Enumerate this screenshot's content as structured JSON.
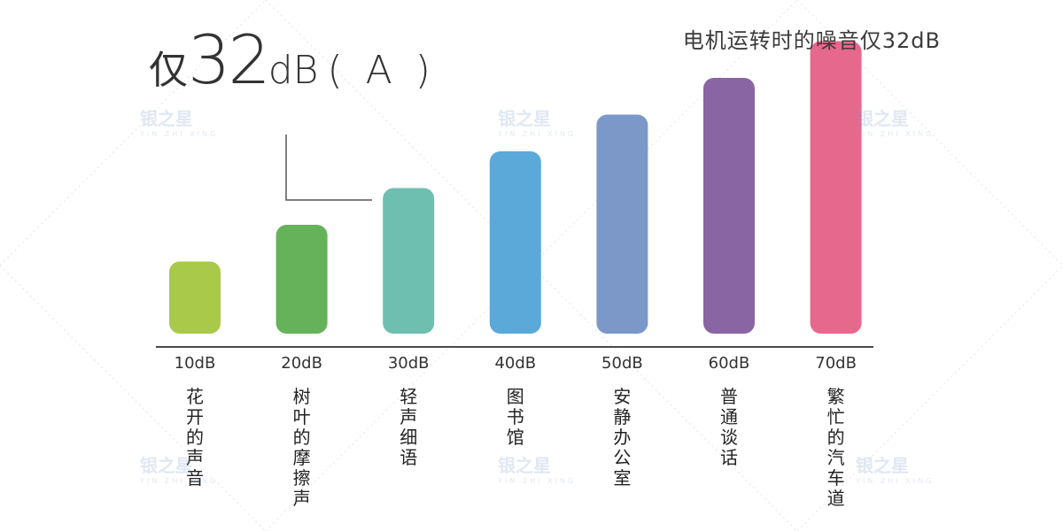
{
  "chart_data": {
    "type": "bar",
    "title": "电机运转时的噪音仅32dB",
    "callout": {
      "prefix": "仅",
      "number": "32",
      "unit": "dB",
      "suffix": "( A )"
    },
    "callout_value_db": 32,
    "categories": [
      "10dB",
      "20dB",
      "30dB",
      "40dB",
      "50dB",
      "60dB",
      "70dB"
    ],
    "descriptions": [
      "花开的声音",
      "树叶的摩擦声",
      "轻声细语",
      "图书馆",
      "安静办公室",
      "普通谈话",
      "繁忙的汽车道"
    ],
    "values": [
      10,
      20,
      30,
      40,
      50,
      60,
      70
    ],
    "colors": [
      "#a9c94a",
      "#66b25b",
      "#6fbfb0",
      "#5aa9d9",
      "#7b98c9",
      "#8a65a4",
      "#e7688d"
    ],
    "ylim": [
      0,
      70
    ],
    "xlabel": "",
    "ylabel": "",
    "grid": false,
    "legend": "none"
  },
  "watermark": {
    "text": "银之星",
    "sub": "YIN ZHI XING"
  }
}
